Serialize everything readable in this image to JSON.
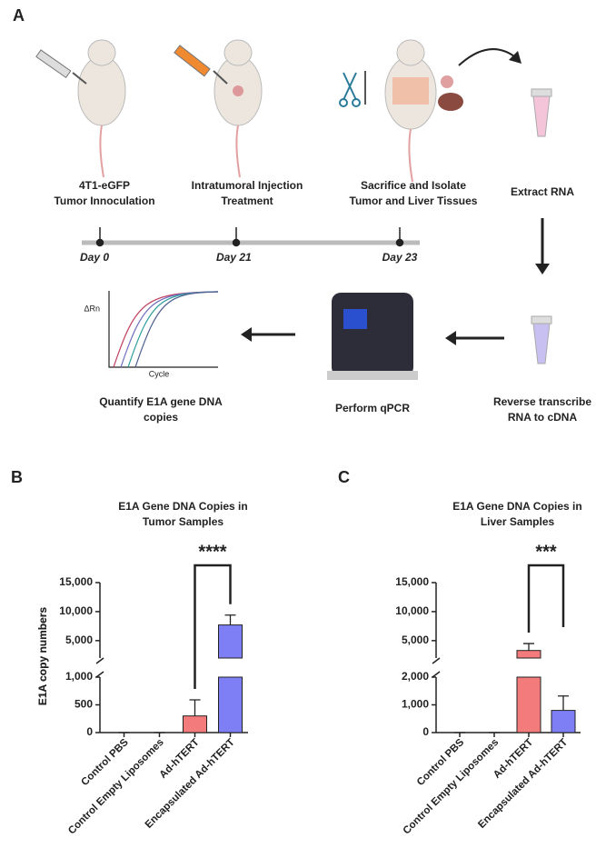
{
  "panel_a": {
    "label": "A",
    "steps": [
      [
        "4T1-eGFP",
        "Tumor Innoculation"
      ],
      [
        "Intratumoral Injection",
        "Treatment"
      ],
      [
        "Sacrifice and Isolate",
        "Tumor and Liver Tissues"
      ],
      [
        "Extract RNA"
      ],
      [
        "Reverse transcribe",
        "RNA to cDNA"
      ],
      [
        "Perform qPCR"
      ],
      [
        "Quantify E1A gene DNA",
        "copies"
      ]
    ],
    "timeline": [
      "Day 0",
      "Day 21",
      "Day 23"
    ],
    "plot": {
      "y_label": "ΔRn",
      "x_label": "Cycle"
    }
  },
  "chart_data": [
    {
      "type": "bar",
      "panel": "B",
      "title": [
        "E1A Gene DNA Copies in",
        "Tumor Samples"
      ],
      "y_label": "E1A copy numbers",
      "categories": [
        "Control PBS",
        "Control Empty Liposomes",
        "Ad-hTERT",
        "Encapsulated Ad-hTERT"
      ],
      "values": [
        0,
        0,
        300,
        7700
      ],
      "errors": [
        0,
        0,
        290,
        1700
      ],
      "colors": [
        "#000000",
        "#000000",
        "#f47b7b",
        "#7f7ff5"
      ],
      "segments": [
        {
          "ylim": [
            0,
            1000
          ],
          "yticks": [
            0,
            500,
            {
              "value": 1000,
              "label": "1,000"
            }
          ]
        },
        {
          "ylim": [
            2000,
            15000
          ],
          "yticks": [
            {
              "value": 5000,
              "label": "5,000"
            },
            {
              "value": 10000,
              "label": "10,000"
            },
            {
              "value": 15000,
              "label": "15,000"
            }
          ]
        }
      ],
      "annotation": "****"
    },
    {
      "type": "bar",
      "panel": "C",
      "title": [
        "E1A Gene DNA Copies in",
        "Liver Samples"
      ],
      "y_label": "E1A copy numbers",
      "categories": [
        "Control PBS",
        "Control Empty Liposomes",
        "Ad-hTERT",
        "Encapsulated Ad-hTERT"
      ],
      "values": [
        0,
        0,
        3300,
        800
      ],
      "errors": [
        0,
        0,
        1200,
        520
      ],
      "colors": [
        "#000000",
        "#000000",
        "#f47b7b",
        "#7f7ff5"
      ],
      "segments": [
        {
          "ylim": [
            0,
            2000
          ],
          "yticks": [
            0,
            {
              "value": 1000,
              "label": "1,000"
            },
            {
              "value": 2000,
              "label": "2,000"
            }
          ]
        },
        {
          "ylim": [
            2000,
            15000
          ],
          "yticks": [
            {
              "value": 5000,
              "label": "5,000"
            },
            {
              "value": 10000,
              "label": "10,000"
            },
            {
              "value": 15000,
              "label": "15,000"
            }
          ]
        }
      ],
      "annotation": "***"
    }
  ]
}
